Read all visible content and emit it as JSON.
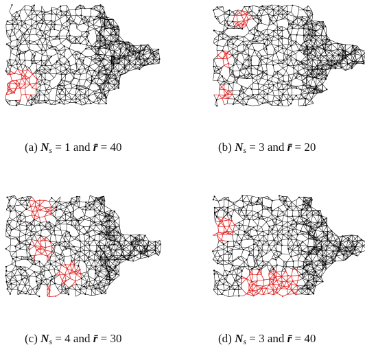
{
  "figure": {
    "panels": [
      {
        "id": "a",
        "caption": {
          "label": "(a)",
          "ns_value": "1",
          "r_value": "40"
        },
        "highlight_color": "#e02020"
      },
      {
        "id": "b",
        "caption": {
          "label": "(b)",
          "ns_value": "3",
          "r_value": "20"
        },
        "highlight_color": "#e02020"
      },
      {
        "id": "c",
        "caption": {
          "label": "(c)",
          "ns_value": "4",
          "r_value": "30"
        },
        "highlight_color": "#e02020"
      },
      {
        "id": "d",
        "caption": {
          "label": "(d)",
          "ns_value": "3",
          "r_value": "40"
        },
        "highlight_color": "#e02020"
      }
    ],
    "caption_symbols": {
      "ns": "N",
      "ns_sub": "s",
      "and": "and",
      "r": "r̄",
      "eq": "="
    },
    "mesh_color": "#000000"
  }
}
